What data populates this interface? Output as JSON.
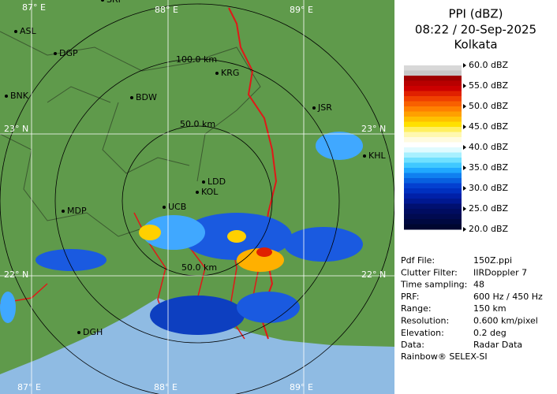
{
  "map": {
    "lon_labels_top": [
      "87° E",
      "88° E",
      "89° E"
    ],
    "lon_labels_bottom": [
      "87° E",
      "88° E",
      "89° E"
    ],
    "lat_labels_left": [
      "23° N",
      "22° N"
    ],
    "lat_labels_right": [
      "23° N",
      "22° N"
    ],
    "range_labels": [
      "100.0 km",
      "50.0 km",
      "50.0 km"
    ],
    "cities": [
      "SRI",
      "ASL",
      "DGP",
      "KRG",
      "BDW",
      "BNK",
      "JSR",
      "KHL",
      "LDD",
      "KOL",
      "UCB",
      "MDP",
      "DGH"
    ]
  },
  "panel": {
    "title": "PPI (dBZ)",
    "time": "08:22 / 20-Sep-2025",
    "site": "Kolkata",
    "legend": [
      "60.0 dBZ",
      "55.0 dBZ",
      "50.0 dBZ",
      "45.0 dBZ",
      "40.0 dBZ",
      "35.0 dBZ",
      "30.0 dBZ",
      "25.0 dBZ",
      "20.0 dBZ"
    ],
    "legend_colors": [
      [
        "#d8d8d8",
        "#c8c8c8",
        "#a00000",
        "#b80000"
      ],
      [
        "#cc0000",
        "#e02000",
        "#f04000",
        "#f86000"
      ],
      [
        "#ff8000",
        "#ffa000",
        "#ffc000",
        "#ffe000"
      ],
      [
        "#ffef60",
        "#fff8b0",
        "#fffbe0",
        "#ffffff"
      ],
      [
        "#e0fbff",
        "#a8f0ff",
        "#70e0ff",
        "#40c8ff"
      ],
      [
        "#20a8ff",
        "#1080f0",
        "#0860e0",
        "#0440d0"
      ],
      [
        "#0030c0",
        "#0020a8",
        "#001890",
        "#001070"
      ],
      [
        "#000c60",
        "#000a50",
        "#000840",
        "#000630"
      ]
    ],
    "info": [
      [
        "Pdf File:",
        "150Z.ppi"
      ],
      [
        "Clutter Filter:",
        "IIRDoppler 7"
      ],
      [
        "Time sampling:",
        "48"
      ],
      [
        "PRF:",
        "600 Hz / 450 Hz"
      ],
      [
        "Range:",
        "150 km"
      ],
      [
        "Resolution:",
        "0.600 km/pixel"
      ],
      [
        "Elevation:",
        "0.2 deg"
      ],
      [
        "Data:",
        "Radar Data"
      ]
    ],
    "footer": "Rainbow® SELEX-SI"
  }
}
